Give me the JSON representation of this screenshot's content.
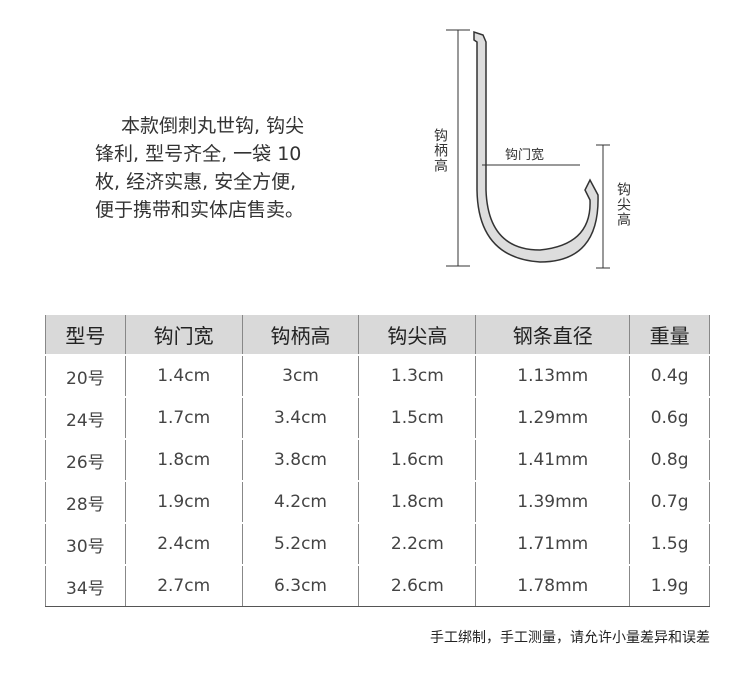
{
  "description": {
    "lines": [
      "本款倒刺丸世钩, 钩尖",
      "锋利, 型号齐全, 一袋 10",
      "枚, 经济实惠, 安全方便,",
      "便于携带和实体店售卖。"
    ]
  },
  "diagram": {
    "shank_height": "钩柄高",
    "gap_width": "钩门宽",
    "point_height": "钩尖高"
  },
  "table": {
    "columns": [
      "型号",
      "钩门宽",
      "钩柄高",
      "钩尖高",
      "钢条直径",
      "重量"
    ],
    "rows": [
      [
        "20号",
        "1.4cm",
        "3cm",
        "1.3cm",
        "1.13mm",
        "0.4g"
      ],
      [
        "24号",
        "1.7cm",
        "3.4cm",
        "1.5cm",
        "1.29mm",
        "0.6g"
      ],
      [
        "26号",
        "1.8cm",
        "3.8cm",
        "1.6cm",
        "1.41mm",
        "0.8g"
      ],
      [
        "28号",
        "1.9cm",
        "4.2cm",
        "1.8cm",
        "1.39mm",
        "0.7g"
      ],
      [
        "30号",
        "2.4cm",
        "5.2cm",
        "2.2cm",
        "1.71mm",
        "1.5g"
      ],
      [
        "34号",
        "2.7cm",
        "6.3cm",
        "2.6cm",
        "1.78mm",
        "1.9g"
      ]
    ]
  },
  "footer": "手工绑制，手工测量，请允许小量差异和误差"
}
